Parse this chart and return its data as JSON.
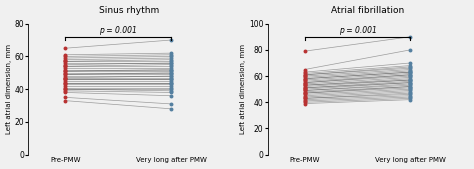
{
  "chart1": {
    "title": "Sinus rhythm",
    "pvalue": "p = 0.001",
    "ylabel": "Left atrial dimension, mm",
    "xlabel_left": "Pre-PMW",
    "xlabel_right": "Very long after PMW",
    "ylim": [
      0,
      80
    ],
    "yticks": [
      0,
      20,
      40,
      60,
      80
    ],
    "pre_pmw": [
      65,
      61,
      60,
      59,
      58,
      57,
      57,
      56,
      55,
      54,
      54,
      53,
      52,
      51,
      51,
      50,
      49,
      49,
      48,
      47,
      47,
      46,
      46,
      45,
      44,
      44,
      43,
      42,
      41,
      40,
      40,
      39,
      38,
      35,
      33
    ],
    "post_pmw": [
      70,
      62,
      61,
      60,
      59,
      58,
      57,
      56,
      56,
      55,
      54,
      53,
      52,
      52,
      51,
      50,
      50,
      49,
      48,
      48,
      47,
      46,
      46,
      45,
      44,
      44,
      43,
      42,
      41,
      40,
      39,
      38,
      36,
      31,
      28
    ]
  },
  "chart2": {
    "title": "Atrial fibrillation",
    "pvalue": "p = 0.001",
    "ylabel": "Left atrial dimension, mm",
    "xlabel_left": "Pre-PMW",
    "xlabel_right": "Very long after PMW",
    "ylim": [
      0,
      100
    ],
    "yticks": [
      0,
      20,
      40,
      60,
      80,
      100
    ],
    "pre_pmw": [
      79,
      65,
      63,
      62,
      61,
      61,
      60,
      59,
      58,
      58,
      57,
      56,
      55,
      55,
      54,
      53,
      53,
      52,
      51,
      51,
      50,
      49,
      49,
      48,
      47,
      47,
      46,
      45,
      44,
      43,
      43,
      42,
      41,
      40,
      39
    ],
    "post_pmw": [
      90,
      80,
      70,
      68,
      67,
      66,
      65,
      64,
      63,
      63,
      62,
      61,
      61,
      60,
      59,
      58,
      57,
      57,
      56,
      55,
      55,
      54,
      53,
      52,
      52,
      51,
      50,
      49,
      48,
      47,
      46,
      45,
      44,
      43,
      42
    ]
  },
  "pre_color": "#b83232",
  "post_color": "#5580a0",
  "line_color": "#333333",
  "line_alpha": 0.45,
  "line_width": 0.5,
  "dot_size": 8,
  "background_color": "#f0f0f0",
  "figsize": [
    4.74,
    1.69
  ],
  "dpi": 100
}
